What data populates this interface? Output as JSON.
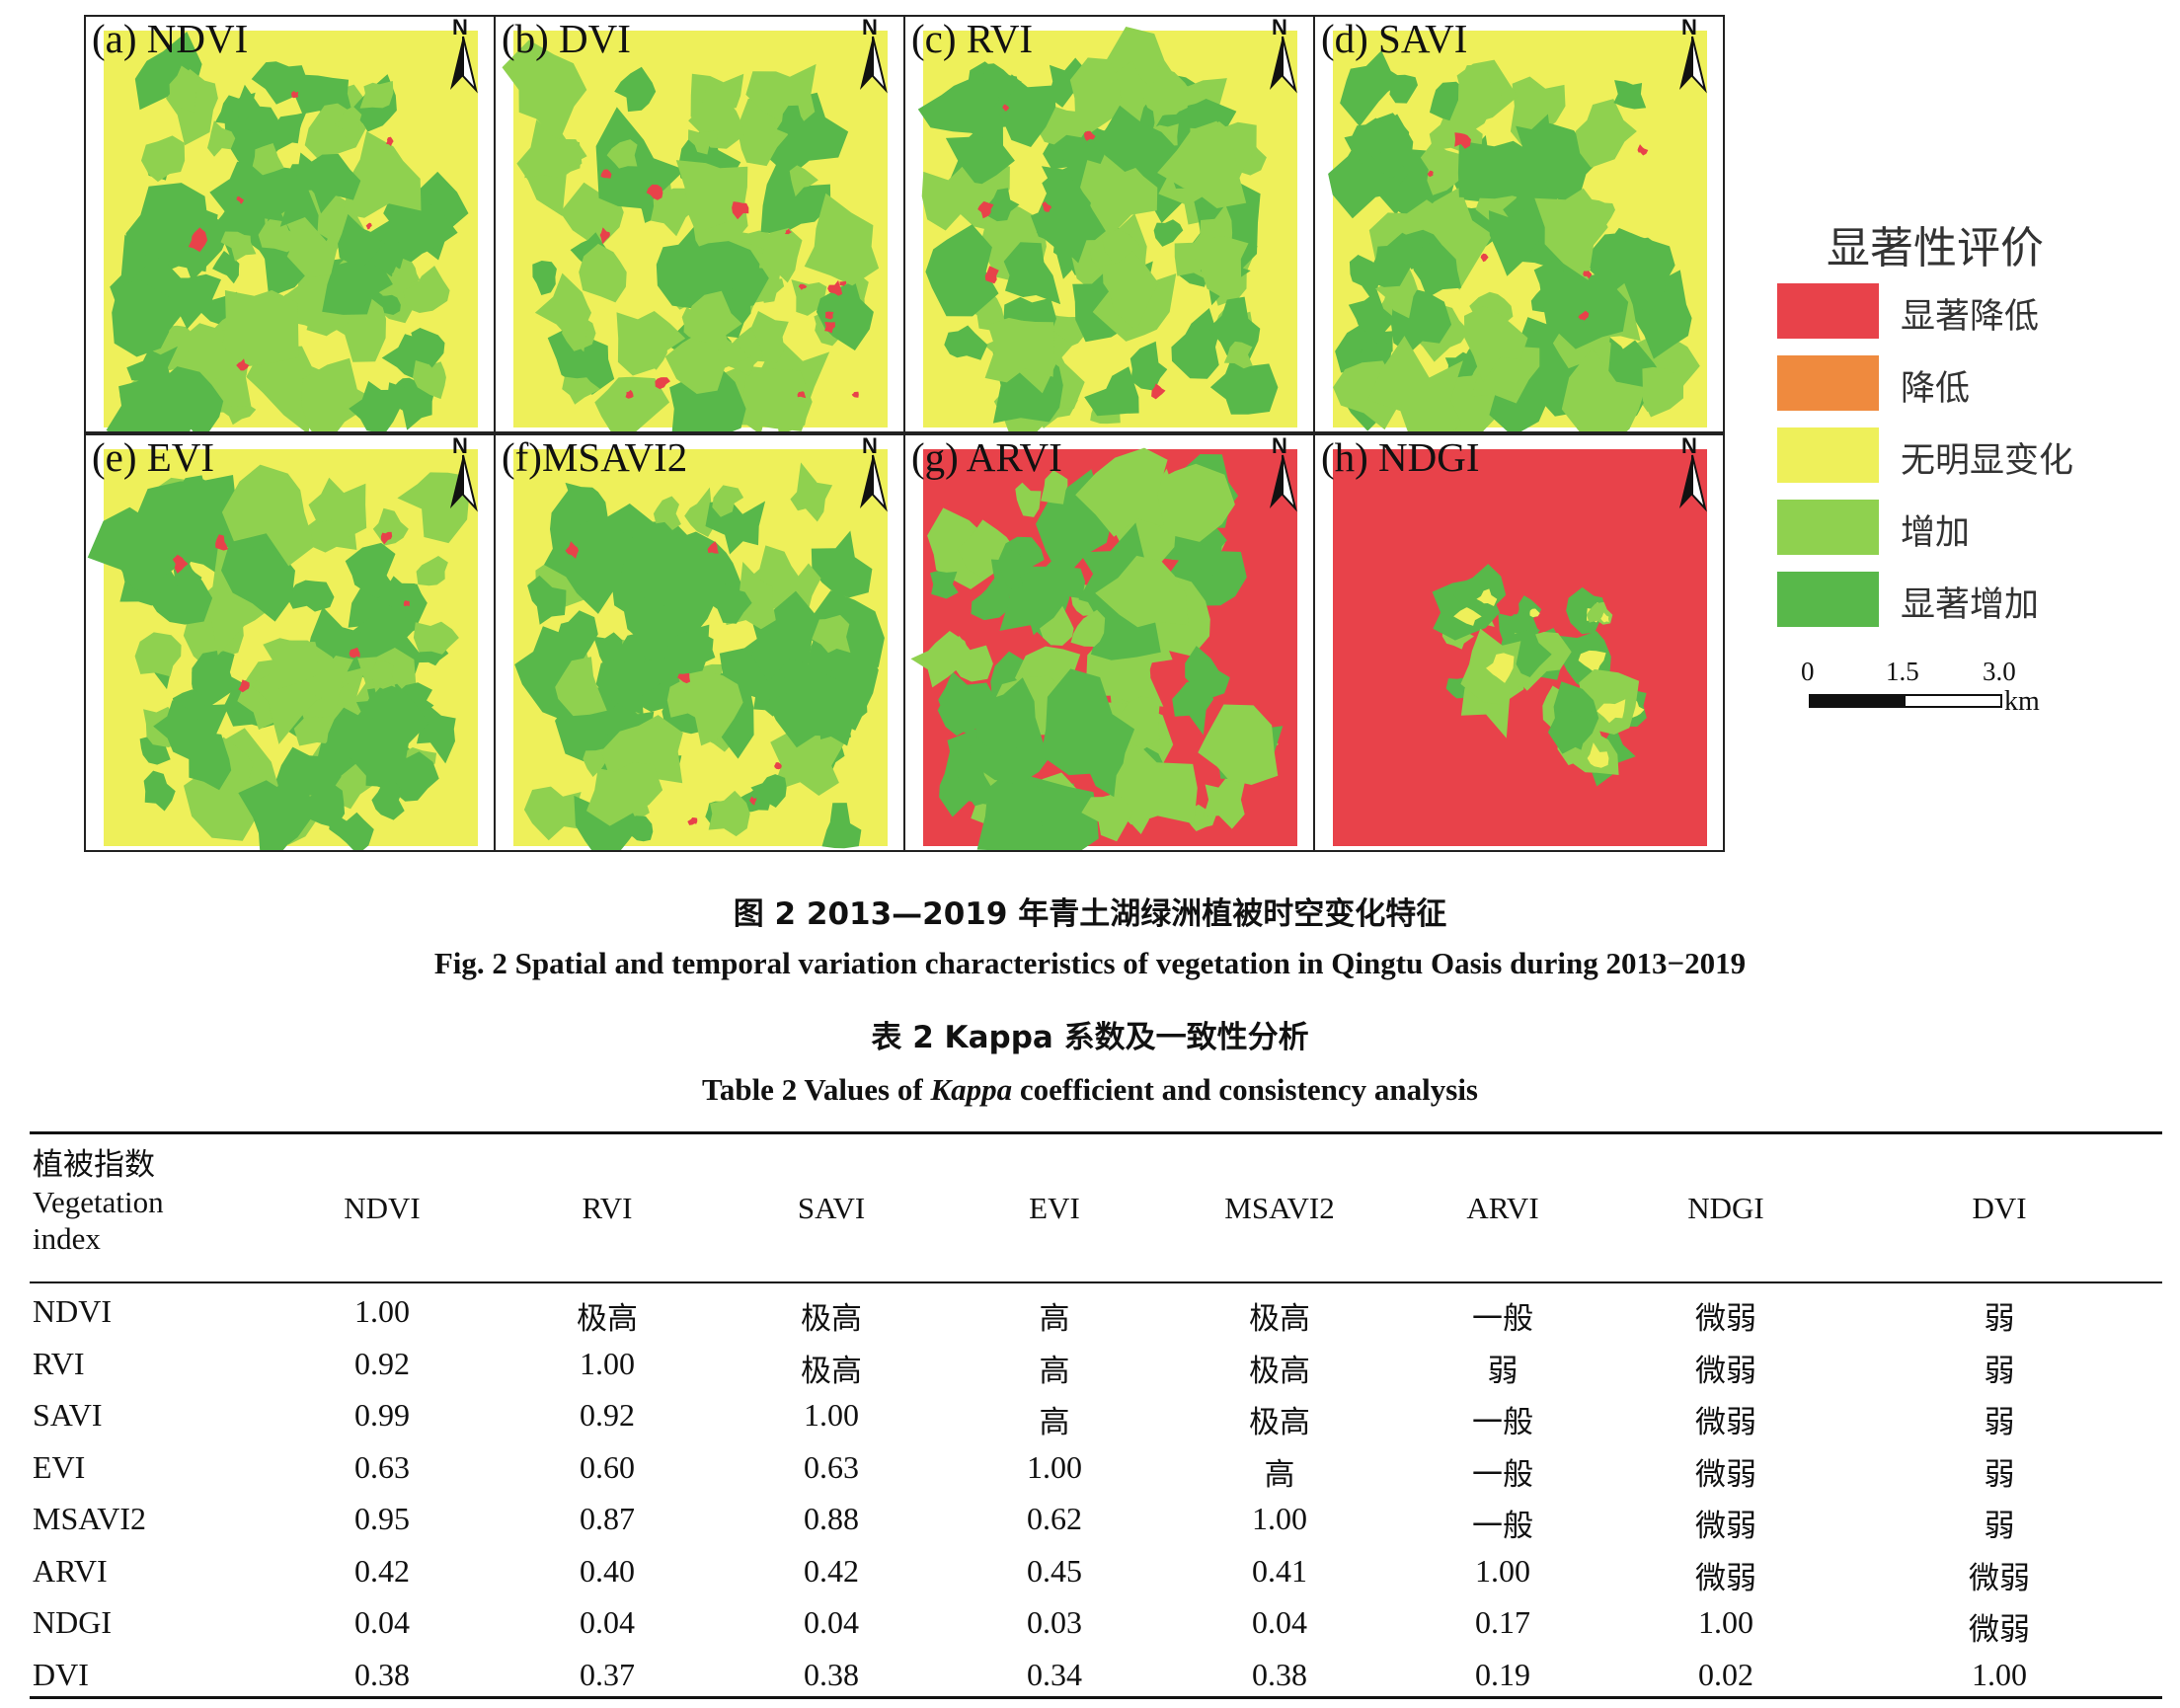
{
  "figure": {
    "panels": [
      {
        "label": "(a) NDVI",
        "pattern": "green"
      },
      {
        "label": "(b) DVI",
        "pattern": "green-light"
      },
      {
        "label": "(c) RVI",
        "pattern": "green"
      },
      {
        "label": "(d) SAVI",
        "pattern": "green"
      },
      {
        "label": "(e) EVI",
        "pattern": "green"
      },
      {
        "label": "(f)MSAVI2",
        "pattern": "green"
      },
      {
        "label": "(g) ARVI",
        "pattern": "red-mixed"
      },
      {
        "label": "(h) NDGI",
        "pattern": "red-dominant"
      }
    ],
    "north_label": "N",
    "legend": {
      "title": "显著性评价",
      "items": [
        {
          "label": "显著降低",
          "color": "#e8424a"
        },
        {
          "label": "降低",
          "color": "#ef8a3e"
        },
        {
          "label": "无明显变化",
          "color": "#eef05a"
        },
        {
          "label": "增加",
          "color": "#8fd14f"
        },
        {
          "label": "显著增加",
          "color": "#58b84a"
        }
      ]
    },
    "scalebar": {
      "ticks": [
        "0",
        "1.5",
        "3.0"
      ],
      "unit": "km"
    }
  },
  "captions": {
    "figure_cn": "图 2   2013—2019 年青土湖绿洲植被时空变化特征",
    "figure_en": "Fig. 2   Spatial and temporal variation characteristics of vegetation in Qingtu Oasis during 2013−2019",
    "table_cn": "表 2   Kappa 系数及一致性分析",
    "table_en_pre": "Table 2   Values of ",
    "table_en_italic": "Kappa",
    "table_en_post": " coefficient and consistency analysis"
  },
  "table": {
    "header_first": [
      "植被指数",
      "Vegetation",
      "index"
    ],
    "columns": [
      "NDVI",
      "RVI",
      "SAVI",
      "EVI",
      "MSAVI2",
      "ARVI",
      "NDGI",
      "DVI"
    ],
    "rows": [
      {
        "name": "NDVI",
        "cells": [
          "1.00",
          "极高",
          "极高",
          "高",
          "极高",
          "一般",
          "微弱",
          "弱"
        ]
      },
      {
        "name": "RVI",
        "cells": [
          "0.92",
          "1.00",
          "极高",
          "高",
          "极高",
          "弱",
          "微弱",
          "弱"
        ]
      },
      {
        "name": "SAVI",
        "cells": [
          "0.99",
          "0.92",
          "1.00",
          "高",
          "极高",
          "一般",
          "微弱",
          "弱"
        ]
      },
      {
        "name": "EVI",
        "cells": [
          "0.63",
          "0.60",
          "0.63",
          "1.00",
          "高",
          "一般",
          "微弱",
          "弱"
        ]
      },
      {
        "name": "MSAVI2",
        "cells": [
          "0.95",
          "0.87",
          "0.88",
          "0.62",
          "1.00",
          "一般",
          "微弱",
          "弱"
        ]
      },
      {
        "name": "ARVI",
        "cells": [
          "0.42",
          "0.40",
          "0.42",
          "0.45",
          "0.41",
          "1.00",
          "微弱",
          "微弱"
        ]
      },
      {
        "name": "NDGI",
        "cells": [
          "0.04",
          "0.04",
          "0.04",
          "0.03",
          "0.04",
          "0.17",
          "1.00",
          "微弱"
        ]
      },
      {
        "name": "DVI",
        "cells": [
          "0.38",
          "0.37",
          "0.38",
          "0.34",
          "0.38",
          "0.19",
          "0.02",
          "1.00"
        ]
      }
    ]
  }
}
